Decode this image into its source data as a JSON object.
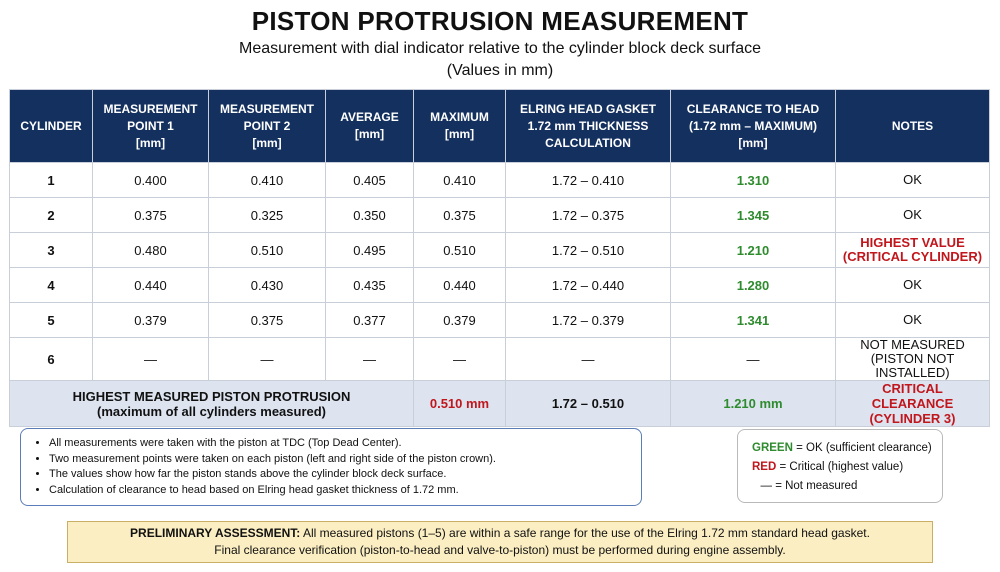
{
  "title": "PISTON PROTRUSION MEASUREMENT",
  "subtitle": "Measurement with dial indicator relative to the cylinder block deck surface",
  "units_note": "(Values in mm)",
  "headers": [
    [
      "CYLINDER"
    ],
    [
      "MEASUREMENT",
      "POINT 1",
      "[mm]"
    ],
    [
      "MEASUREMENT",
      "POINT 2",
      "[mm]"
    ],
    [
      "AVERAGE",
      "[mm]"
    ],
    [
      "MAXIMUM",
      "[mm]"
    ],
    [
      "ELRING HEAD GASKET",
      "1.72 mm THICKNESS",
      "CALCULATION"
    ],
    [
      "CLEARANCE TO HEAD",
      "(1.72 mm – MAXIMUM)",
      "[mm]"
    ],
    [
      "NOTES"
    ]
  ],
  "rows": [
    {
      "cyl": "1",
      "p1": "0.400",
      "p2": "0.410",
      "avg": "0.405",
      "max": "0.410",
      "calc": "1.72 – 0.410",
      "clear": "1.310",
      "note": [
        "OK"
      ],
      "critical": false
    },
    {
      "cyl": "2",
      "p1": "0.375",
      "p2": "0.325",
      "avg": "0.350",
      "max": "0.375",
      "calc": "1.72 – 0.375",
      "clear": "1.345",
      "note": [
        "OK"
      ],
      "critical": false
    },
    {
      "cyl": "3",
      "p1": "0.480",
      "p2": "0.510",
      "avg": "0.495",
      "max": "0.510",
      "calc": "1.72 – 0.510",
      "clear": "1.210",
      "note": [
        "HIGHEST VALUE",
        "(CRITICAL CYLINDER)"
      ],
      "critical": true
    },
    {
      "cyl": "4",
      "p1": "0.440",
      "p2": "0.430",
      "avg": "0.435",
      "max": "0.440",
      "calc": "1.72 – 0.440",
      "clear": "1.280",
      "note": [
        "OK"
      ],
      "critical": false
    },
    {
      "cyl": "5",
      "p1": "0.379",
      "p2": "0.375",
      "avg": "0.377",
      "max": "0.379",
      "calc": "1.72 – 0.379",
      "clear": "1.341",
      "note": [
        "OK"
      ],
      "critical": false
    },
    {
      "cyl": "6",
      "p1": "—",
      "p2": "—",
      "avg": "—",
      "max": "—",
      "calc": "—",
      "clear": "—",
      "note": [
        "NOT MEASURED",
        "(PISTON NOT INSTALLED)"
      ],
      "critical": false
    }
  ],
  "summary": {
    "label_line1": "HIGHEST MEASURED PISTON PROTRUSION",
    "label_line2": "(maximum of all cylinders measured)",
    "max": "0.510 mm",
    "calc": "1.72 – 0.510",
    "clearance": "1.210 mm",
    "note_line1": "CRITICAL CLEARANCE",
    "note_line2": "(CYLINDER 3)"
  },
  "notes": [
    "All measurements were taken with the piston at TDC (Top Dead Center).",
    "Two measurement points were taken on each piston (left and right side of the piston crown).",
    "The values show how far the piston stands above the cylinder block deck surface.",
    "Calculation of clearance to head based on Elring head gasket thickness of 1.72 mm."
  ],
  "legend": {
    "green_key": "GREEN",
    "green_text": " = OK (sufficient clearance)",
    "red_key": "RED",
    "red_text": " = Critical (highest value)",
    "dash_key": "—",
    "dash_text": " = Not measured"
  },
  "assessment": {
    "label": "PRELIMINARY ASSESSMENT:",
    "line1": " All measured pistons (1–5) are within a safe range for the use of the Elring 1.72 mm standard head gasket.",
    "line2": "Final clearance verification (piston-to-head and valve-to-piston) must be performed during engine assembly."
  },
  "colors": {
    "header_bg": "#14305f",
    "ok_green": "#2e8b2e",
    "critical_red": "#c0161c",
    "summary_bg": "#dde4f0",
    "assessment_bg": "#fbeec2"
  }
}
